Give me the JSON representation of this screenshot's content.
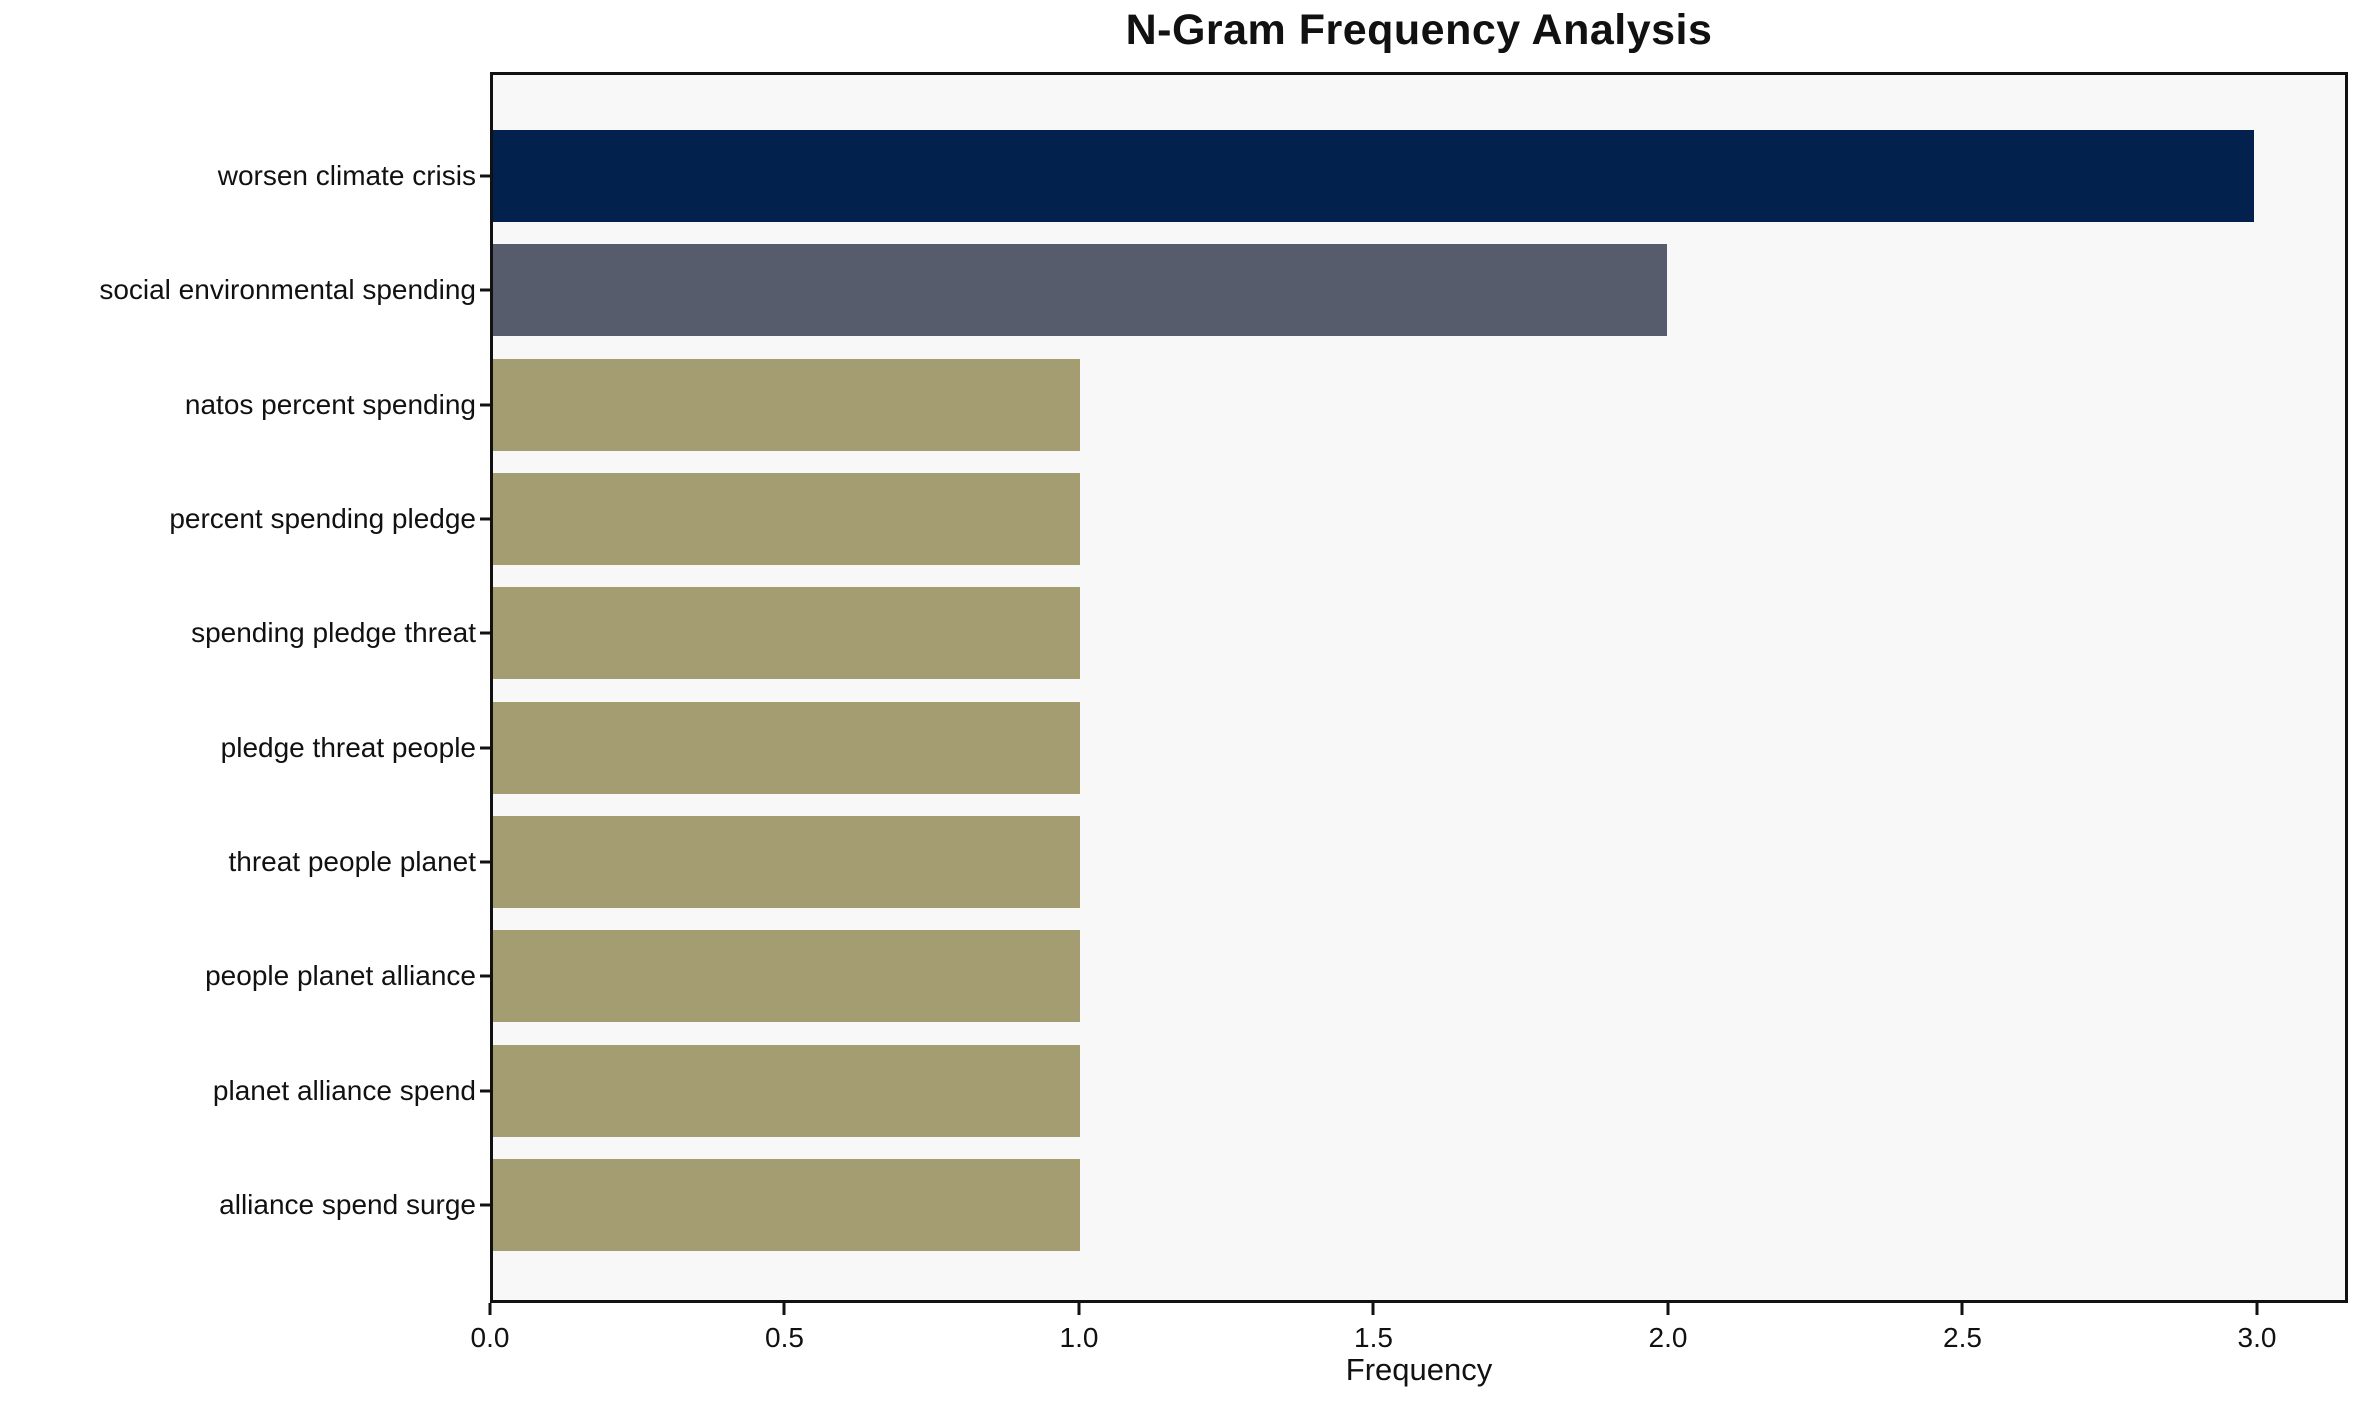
{
  "title": "N-Gram Frequency Analysis",
  "chart_data": {
    "type": "bar",
    "orientation": "horizontal",
    "title": "N-Gram Frequency Analysis",
    "xlabel": "Frequency",
    "ylabel": "",
    "categories": [
      "worsen climate crisis",
      "social environmental spending",
      "natos percent spending",
      "percent spending pledge",
      "spending pledge threat",
      "pledge threat people",
      "threat people planet",
      "people planet alliance",
      "planet alliance spend",
      "alliance spend surge"
    ],
    "values": [
      3,
      2,
      1,
      1,
      1,
      1,
      1,
      1,
      1,
      1
    ],
    "bar_colors": [
      "#02224d",
      "#565c6b",
      "#a49d72",
      "#a49d72",
      "#a49d72",
      "#a49d72",
      "#a49d72",
      "#a49d72",
      "#a49d72",
      "#a49d72"
    ],
    "xticks": [
      "0.0",
      "0.5",
      "1.0",
      "1.5",
      "2.0",
      "2.5",
      "3.0"
    ],
    "xtick_values": [
      0.0,
      0.5,
      1.0,
      1.5,
      2.0,
      2.5,
      3.0
    ],
    "xlim": [
      0,
      3.1545
    ],
    "grid": false,
    "legend": null,
    "plot_background": "#f8f8f8",
    "page_background": "#ffffff",
    "frame_color": "#111111"
  }
}
